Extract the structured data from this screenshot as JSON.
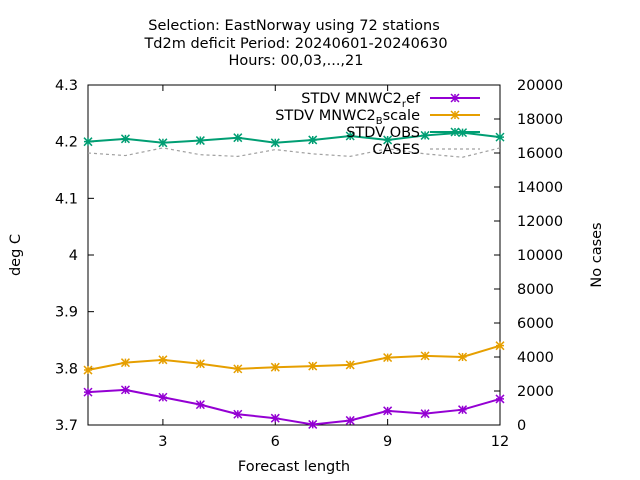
{
  "chart_data": {
    "type": "line",
    "title_lines": [
      "Selection: EastNorway using    72 stations",
      "Td2m deficit   Period: 20240601-20240630",
      "Hours: 00,03,...,21"
    ],
    "xlabel": "Forecast length",
    "ylabel": "deg C",
    "y2label": "No cases",
    "xlim": [
      1,
      12
    ],
    "ylim": [
      3.7,
      4.3
    ],
    "y2lim": [
      0,
      20000
    ],
    "x_ticks": [
      3,
      6,
      9,
      12
    ],
    "x_tick_labels": [
      "3",
      "6",
      "9",
      "12"
    ],
    "y_ticks": [
      3.7,
      3.8,
      3.9,
      4.0,
      4.1,
      4.2,
      4.3
    ],
    "y_tick_labels": [
      "3.7",
      "3.8",
      "3.9",
      "4",
      "4.1",
      "4.2",
      "4.3"
    ],
    "y2_ticks": [
      0,
      2000,
      4000,
      6000,
      8000,
      10000,
      12000,
      14000,
      16000,
      18000,
      20000
    ],
    "y2_tick_labels": [
      "0",
      "2000",
      "4000",
      "6000",
      "8000",
      "10000",
      "12000",
      "14000",
      "16000",
      "18000",
      "20000"
    ],
    "legend_placement": "top-right",
    "x": [
      1,
      2,
      3,
      4,
      5,
      6,
      7,
      8,
      9,
      10,
      11,
      12
    ],
    "series": [
      {
        "name": "STDV MNWC2",
        "name_sub": "r",
        "name_after": "ef",
        "color": "#9400d3",
        "axis": "y",
        "marker": "star",
        "values": [
          3.758,
          3.762,
          3.749,
          3.736,
          3.719,
          3.712,
          3.701,
          3.708,
          3.725,
          3.72,
          3.727,
          3.746
        ]
      },
      {
        "name": "STDV MNWC2",
        "name_sub": "B",
        "name_after": "scale",
        "color": "#e69f00",
        "axis": "y",
        "marker": "star",
        "values": [
          3.797,
          3.81,
          3.815,
          3.808,
          3.799,
          3.802,
          3.804,
          3.806,
          3.819,
          3.822,
          3.82,
          3.84
        ]
      },
      {
        "name": "STDV OBS",
        "color": "#009e73",
        "axis": "y",
        "marker": "star",
        "values": [
          4.2,
          4.205,
          4.198,
          4.202,
          4.207,
          4.198,
          4.203,
          4.21,
          4.203,
          4.211,
          4.216,
          4.208
        ]
      },
      {
        "name": "CASES",
        "color": "#a0a0a0",
        "axis": "y2",
        "marker": "none",
        "dashed": true,
        "values": [
          16000,
          15850,
          16300,
          15900,
          15800,
          16200,
          15950,
          15800,
          16250,
          15950,
          15750,
          16300
        ]
      }
    ]
  }
}
